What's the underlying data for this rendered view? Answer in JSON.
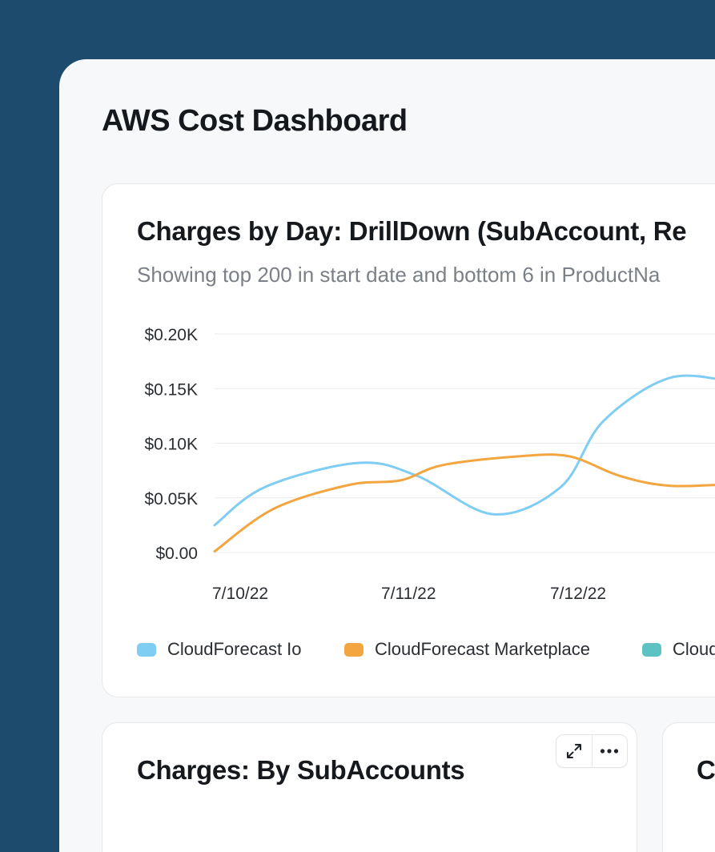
{
  "page": {
    "title": "AWS Cost Dashboard"
  },
  "main_card": {
    "title": "Charges by Day: DrillDown (SubAccount, Re",
    "subtitle": "Showing top 200 in start date and bottom 6 in ProductNa"
  },
  "chart_data": {
    "type": "line",
    "x": [
      "7/10/22",
      "7/11/22",
      "7/12/22"
    ],
    "ylim": [
      0,
      0.2
    ],
    "y_ticks": [
      {
        "value": 0.2,
        "label": "$0.20K"
      },
      {
        "value": 0.15,
        "label": "$0.15K"
      },
      {
        "value": 0.1,
        "label": "$0.10K"
      },
      {
        "value": 0.05,
        "label": "$0.05K"
      },
      {
        "value": 0,
        "label": "$0.00"
      }
    ],
    "grid": true,
    "legend": "bottom",
    "series": [
      {
        "name": "CloudForecast Io",
        "color": "#7fcdf3",
        "points": [
          [
            0,
            0.025
          ],
          [
            0.3,
            0.06
          ],
          [
            0.85,
            0.082
          ],
          [
            1.2,
            0.07
          ],
          [
            1.65,
            0.035
          ],
          [
            2.05,
            0.06
          ],
          [
            2.3,
            0.12
          ],
          [
            2.7,
            0.16
          ],
          [
            3.1,
            0.155
          ]
        ]
      },
      {
        "name": "CloudForecast Marketplace",
        "color": "#f3a53f",
        "points": [
          [
            0,
            0.001
          ],
          [
            0.35,
            0.04
          ],
          [
            0.8,
            0.062
          ],
          [
            1.1,
            0.066
          ],
          [
            1.35,
            0.08
          ],
          [
            1.8,
            0.088
          ],
          [
            2.1,
            0.088
          ],
          [
            2.4,
            0.07
          ],
          [
            2.7,
            0.061
          ],
          [
            3.1,
            0.063
          ]
        ]
      },
      {
        "name": "Cloud",
        "color": "#5cc2c4",
        "points": []
      }
    ]
  },
  "sub_card_1": {
    "title": "Charges: By SubAccounts",
    "expand_icon": "expand-icon",
    "more_icon": "more-horizontal-icon"
  },
  "sub_card_2": {
    "title": "C"
  }
}
